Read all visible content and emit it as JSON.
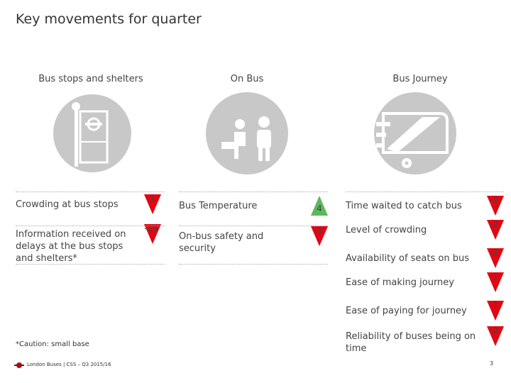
{
  "title": "Key movements for quarter",
  "columns": [
    {
      "heading": "Bus stops and shelters",
      "items": [
        {
          "label": "Crowding at bus stops",
          "value": -1
        },
        {
          "label": "Information received on delays at the bus stops and shelters*",
          "value": -16
        }
      ]
    },
    {
      "heading": "On Bus",
      "items": [
        {
          "label": "Bus Temperature",
          "value": 4
        },
        {
          "label": "On-bus safety and security",
          "value": -3
        }
      ]
    },
    {
      "heading": "Bus Journey",
      "items": [
        {
          "label": "Time waited to catch bus",
          "value": -2
        },
        {
          "label": "Level of crowding",
          "value": -2
        },
        {
          "label": "Availability of seats on bus",
          "value": -2
        },
        {
          "label": "Ease of making journey",
          "value": -1
        },
        {
          "label": "Ease of paying for journey",
          "value": -1
        },
        {
          "label": "Reliability of buses being on time",
          "value": -2
        }
      ]
    }
  ],
  "footnote": "*Caution: small base",
  "footer": "London Buses | CSS – Q3 2015/16",
  "page_number": "3"
}
